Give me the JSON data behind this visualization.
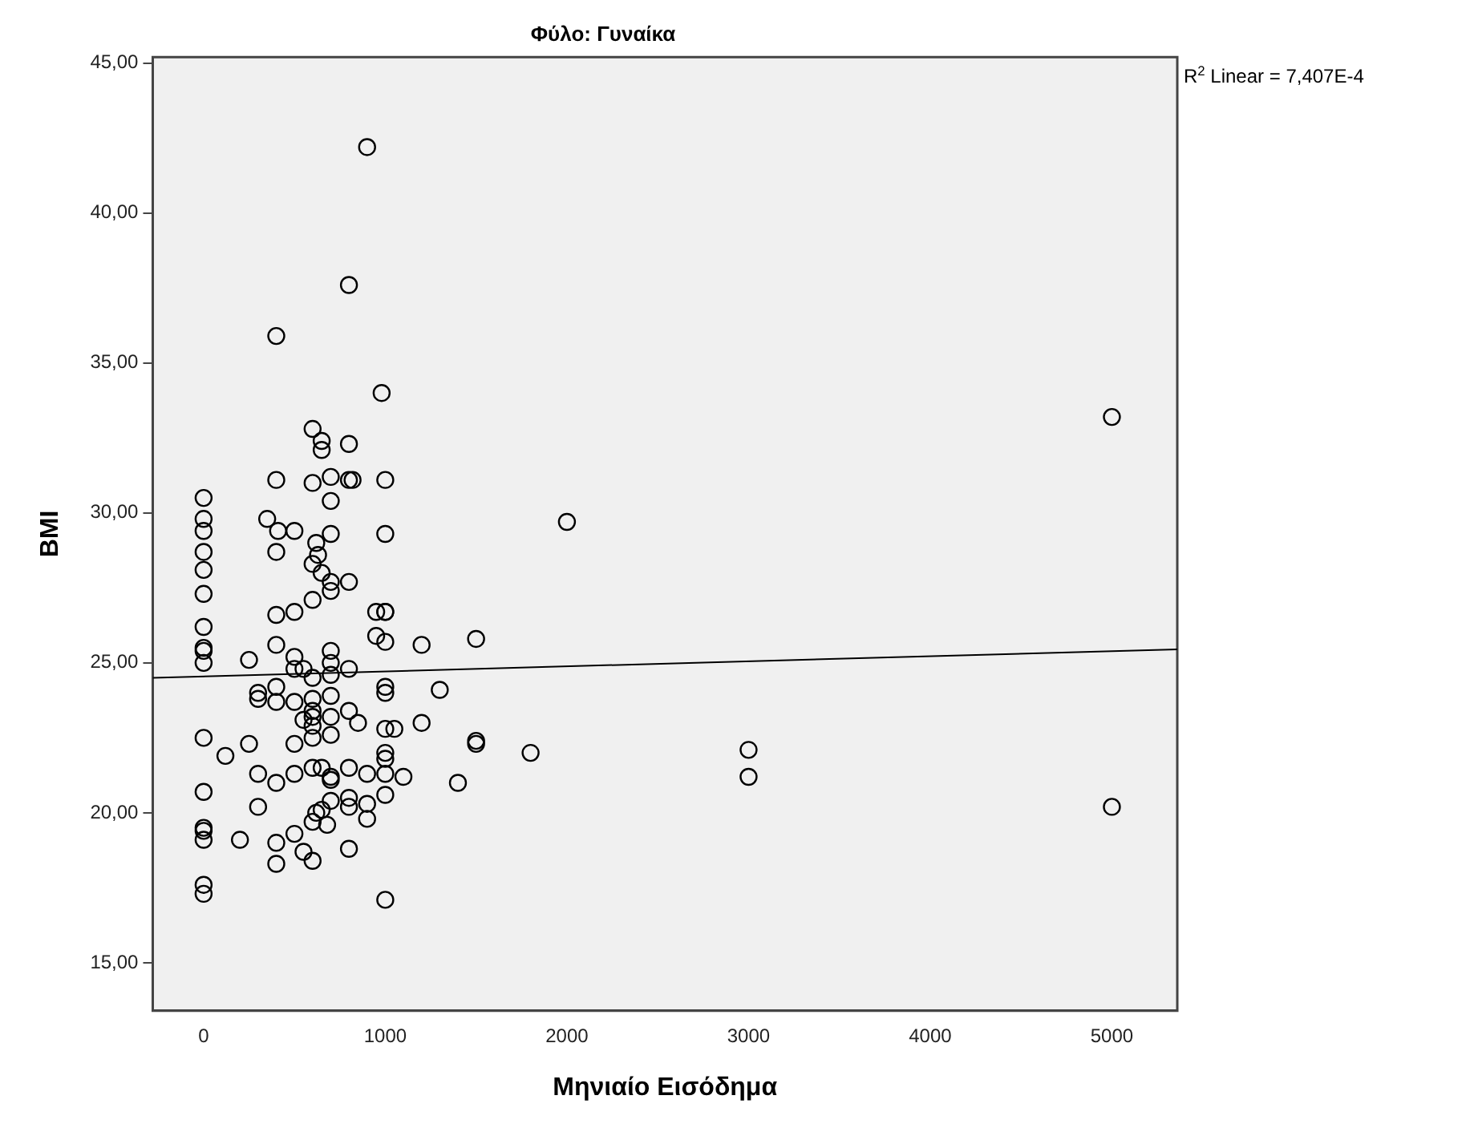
{
  "chart_data": {
    "type": "scatter",
    "title": "Φύλο: Γυναίκα",
    "xlabel": "Μηνιαίο Εισόδημα",
    "ylabel": "BMI",
    "annotations": [
      "R$^{2}$ Linear = 7,407E-4"
    ],
    "xlim": [
      -280,
      5360
    ],
    "xticks": [
      0,
      1000,
      2000,
      3000,
      4000,
      5000
    ],
    "ylim": [
      13.4,
      45.2
    ],
    "yticks": [
      {
        "value": 15,
        "label": "15,00"
      },
      {
        "value": 20,
        "label": "20,00"
      },
      {
        "value": 25,
        "label": "25,00"
      },
      {
        "value": 30,
        "label": "30,00"
      },
      {
        "value": 35,
        "label": "35,00"
      },
      {
        "value": 40,
        "label": "40,00"
      },
      {
        "value": 45,
        "label": "45,00"
      }
    ],
    "grid": false,
    "series": [
      {
        "marker": "circle",
        "color": "#000000",
        "x": [
          0,
          0,
          0,
          0,
          0,
          0,
          0,
          0,
          0,
          0,
          0,
          0,
          0,
          0,
          0,
          0,
          0,
          120,
          250,
          250,
          200,
          300,
          300,
          300,
          300,
          400,
          400,
          400,
          400,
          400,
          400,
          400,
          400,
          400,
          400,
          500,
          500,
          500,
          500,
          500,
          500,
          500,
          500,
          550,
          550,
          550,
          600,
          600,
          600,
          600,
          600,
          600,
          600,
          600,
          600,
          600,
          600,
          600,
          600,
          650,
          650,
          650,
          650,
          620,
          620,
          630,
          650,
          680,
          700,
          700,
          700,
          700,
          700,
          700,
          700,
          700,
          700,
          700,
          700,
          700,
          700,
          700,
          800,
          800,
          800,
          800,
          800,
          800,
          800,
          800,
          800,
          800,
          820,
          850,
          900,
          900,
          900,
          900,
          950,
          950,
          980,
          1000,
          1000,
          1000,
          1000,
          1000,
          1000,
          1000,
          1000,
          1000,
          1000,
          1000,
          1000,
          1000,
          1050,
          1100,
          1200,
          1200,
          1300,
          1400,
          1500,
          1500,
          1500,
          1800,
          2000,
          3000,
          3000,
          5000,
          5000,
          350,
          410
        ],
        "values": [
          30.5,
          29.8,
          29.4,
          28.7,
          28.1,
          27.3,
          26.2,
          25.5,
          25.4,
          25.0,
          22.5,
          20.7,
          19.5,
          19.4,
          19.1,
          17.6,
          17.3,
          21.9,
          22.3,
          25.1,
          19.1,
          24.0,
          23.8,
          21.3,
          20.2,
          24.2,
          23.7,
          21.0,
          19.0,
          18.3,
          35.9,
          31.1,
          25.6,
          28.7,
          26.6,
          25.2,
          24.8,
          23.7,
          22.3,
          21.3,
          19.3,
          29.4,
          26.7,
          18.7,
          24.8,
          23.1,
          24.5,
          23.8,
          23.4,
          23.2,
          22.9,
          22.5,
          21.5,
          19.7,
          18.4,
          32.8,
          31.0,
          28.3,
          27.1,
          21.5,
          20.1,
          32.4,
          32.1,
          20.0,
          29.0,
          28.6,
          28.0,
          19.6,
          25.4,
          25.0,
          24.6,
          23.9,
          23.2,
          22.6,
          21.2,
          21.1,
          20.4,
          31.2,
          30.4,
          29.3,
          27.7,
          27.4,
          24.8,
          23.4,
          21.5,
          20.5,
          20.2,
          18.8,
          37.6,
          32.3,
          31.1,
          27.7,
          31.1,
          23.0,
          21.3,
          20.3,
          19.8,
          42.2,
          26.7,
          25.9,
          34.0,
          25.7,
          24.2,
          24.0,
          22.8,
          22.0,
          21.8,
          21.3,
          20.6,
          17.1,
          31.1,
          29.3,
          26.7,
          26.7,
          22.8,
          21.2,
          23.0,
          25.6,
          24.1,
          21.0,
          25.8,
          22.4,
          22.3,
          22.0,
          29.7,
          22.1,
          21.2,
          20.2,
          33.2,
          29.8,
          29.4
        ]
      },
      {
        "type": "line",
        "marker": "none",
        "color": "#000000",
        "x": [
          -280,
          5360
        ],
        "values": [
          24.5,
          25.45
        ]
      }
    ]
  }
}
